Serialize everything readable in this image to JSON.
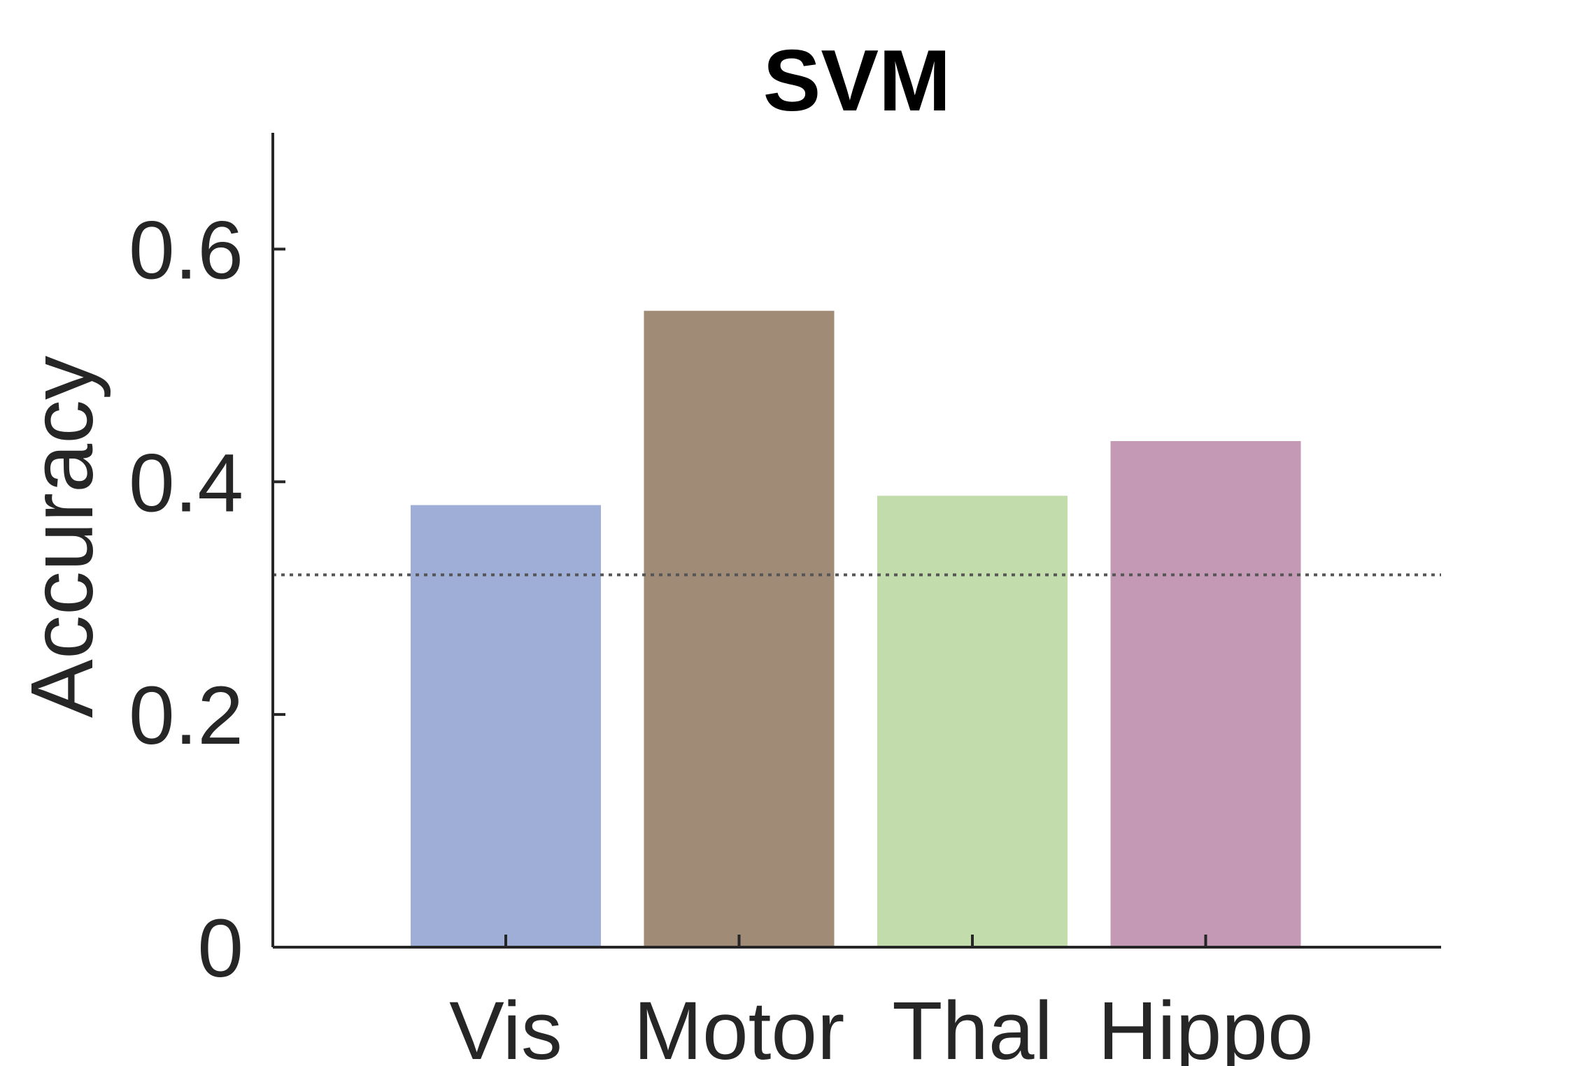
{
  "chart_data": {
    "type": "bar",
    "title": "SVM",
    "xlabel": "",
    "ylabel": "Accuracy",
    "categories": [
      "Vis",
      "Motor",
      "Thal",
      "Hippo"
    ],
    "values": [
      0.38,
      0.547,
      0.388,
      0.435
    ],
    "colors": [
      "#9eaed6",
      "#a08b76",
      "#c3dcab",
      "#c399b5"
    ],
    "ylim": [
      0,
      0.7
    ],
    "yticks": [
      0,
      0.2,
      0.4,
      0.6
    ],
    "ytick_labels": [
      "0",
      "0.2",
      "0.4",
      "0.6"
    ],
    "reference_line": {
      "value": 0.32,
      "style": "dotted"
    },
    "grid": false,
    "legend": "none"
  }
}
